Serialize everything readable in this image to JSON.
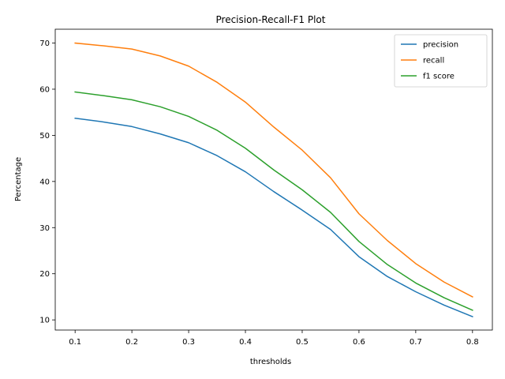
{
  "chart_data": {
    "type": "line",
    "title": "Precision-Recall-F1 Plot",
    "xlabel": "thresholds",
    "ylabel": "Percentage",
    "x": [
      0.1,
      0.15,
      0.2,
      0.25,
      0.3,
      0.35,
      0.4,
      0.45,
      0.5,
      0.55,
      0.6,
      0.65,
      0.7,
      0.75,
      0.8
    ],
    "xticks": [
      0.1,
      0.2,
      0.3,
      0.4,
      0.5,
      0.6,
      0.7,
      0.8
    ],
    "xtick_labels": [
      "0.1",
      "0.2",
      "0.3",
      "0.4",
      "0.5",
      "0.6",
      "0.7",
      "0.8"
    ],
    "yticks": [
      10,
      20,
      30,
      40,
      50,
      60,
      70
    ],
    "ytick_labels": [
      "10",
      "20",
      "30",
      "40",
      "50",
      "60",
      "70"
    ],
    "xlim": [
      0.065,
      0.835
    ],
    "ylim": [
      7.8,
      73.0
    ],
    "grid": false,
    "legend_position": "top-right",
    "series": [
      {
        "name": "precision",
        "color": "#1f77b4",
        "values": [
          53.7,
          52.9,
          51.9,
          50.3,
          48.4,
          45.6,
          42.1,
          37.8,
          33.8,
          29.6,
          23.7,
          19.4,
          16.1,
          13.2,
          10.7
        ]
      },
      {
        "name": "recall",
        "color": "#ff7f0e",
        "values": [
          70.0,
          69.4,
          68.7,
          67.2,
          65.0,
          61.5,
          57.2,
          51.8,
          46.8,
          40.8,
          33.0,
          27.2,
          22.2,
          18.2,
          15.0
        ]
      },
      {
        "name": "f1 score",
        "color": "#2ca02c",
        "values": [
          59.4,
          58.6,
          57.7,
          56.2,
          54.1,
          51.1,
          47.2,
          42.5,
          38.2,
          33.3,
          27.0,
          22.0,
          18.0,
          14.8,
          12.1
        ]
      }
    ]
  }
}
